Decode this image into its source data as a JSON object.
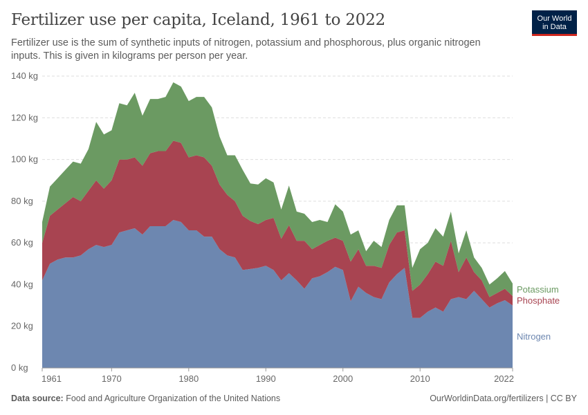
{
  "header": {
    "title": "Fertilizer use per capita, Iceland, 1961 to 2022",
    "subtitle": "Fertilizer use is the sum of synthetic inputs of nitrogen, potassium and phosphorous, plus organic nitrogen inputs. This is given in kilograms per person per year."
  },
  "logo": {
    "line1": "Our World",
    "line2": "in Data"
  },
  "footer": {
    "source_label": "Data source:",
    "source_text": "Food and Agriculture Organization of the United Nations",
    "link": "OurWorldinData.org/fertilizers | CC BY"
  },
  "colors": {
    "Nitrogen": "#6d87b0",
    "Phosphate": "#a84451",
    "Potassium": "#6b9a62",
    "grid": "#dddddd",
    "axis": "#999999"
  },
  "chart_data": {
    "type": "area",
    "stacked": true,
    "title": "Fertilizer use per capita, Iceland, 1961 to 2022",
    "ylim": [
      0,
      140
    ],
    "xlim": [
      1961,
      2022
    ],
    "y_ticks": [
      0,
      20,
      40,
      60,
      80,
      100,
      120,
      140
    ],
    "y_tick_labels": [
      "0 kg",
      "20 kg",
      "40 kg",
      "60 kg",
      "80 kg",
      "100 kg",
      "120 kg",
      "140 kg"
    ],
    "x_ticks": [
      1961,
      1970,
      1980,
      1990,
      2000,
      2010,
      2022
    ],
    "x_tick_labels": [
      "1961",
      "1970",
      "1980",
      "1990",
      "2000",
      "2010",
      "2022"
    ],
    "grid": "horizontal dashed",
    "legend_placement": "right (inline labels)",
    "x": [
      1961,
      1962,
      1963,
      1964,
      1965,
      1966,
      1967,
      1968,
      1969,
      1970,
      1971,
      1972,
      1973,
      1974,
      1975,
      1976,
      1977,
      1978,
      1979,
      1980,
      1981,
      1982,
      1983,
      1984,
      1985,
      1986,
      1987,
      1988,
      1989,
      1990,
      1991,
      1992,
      1993,
      1994,
      1995,
      1996,
      1997,
      1998,
      1999,
      2000,
      2001,
      2002,
      2003,
      2004,
      2005,
      2006,
      2007,
      2008,
      2009,
      2010,
      2011,
      2012,
      2013,
      2014,
      2015,
      2016,
      2017,
      2018,
      2019,
      2020,
      2021,
      2022
    ],
    "series": [
      {
        "name": "Nitrogen",
        "values": [
          42,
          50,
          52,
          53,
          53,
          54,
          57,
          59,
          58,
          59,
          65,
          66,
          67,
          64,
          68,
          68,
          68,
          71,
          70,
          66,
          66,
          63,
          63,
          57,
          54,
          53,
          47,
          47.5,
          48,
          49,
          47,
          42,
          45.5,
          42,
          38,
          43,
          44,
          46,
          48.5,
          47,
          32,
          39,
          36,
          34,
          33,
          41,
          45,
          48,
          24,
          24,
          27,
          29,
          27,
          33,
          34,
          33,
          37,
          33,
          29,
          31,
          32.5,
          30
        ]
      },
      {
        "name": "Phosphate",
        "values": [
          18,
          23,
          24,
          26,
          29,
          26,
          28,
          31,
          28,
          31,
          35,
          34,
          34,
          33,
          35,
          36,
          36,
          38,
          38,
          35,
          36,
          38,
          34,
          31,
          29,
          27,
          26,
          23,
          21,
          22,
          25,
          20,
          23,
          19,
          23,
          14,
          15,
          15,
          14,
          14,
          19,
          18,
          13,
          15,
          15,
          18,
          20,
          18,
          13,
          16,
          18,
          22,
          22,
          28,
          12,
          20,
          9,
          9,
          5,
          5,
          5.5,
          4.5
        ]
      },
      {
        "name": "Potassium",
        "values": [
          10,
          14,
          15,
          16,
          17,
          18,
          20,
          28,
          26,
          24,
          27,
          26,
          31,
          24,
          26,
          25,
          26,
          28,
          27,
          27,
          28,
          29,
          28,
          23,
          19,
          22,
          22,
          18,
          19,
          20,
          17,
          14,
          19,
          14,
          13,
          13,
          12,
          9,
          16,
          14,
          13,
          9,
          7,
          12,
          10,
          12,
          13,
          12,
          11,
          17,
          15,
          16,
          14,
          14,
          9,
          13,
          7,
          6,
          6,
          7,
          8.5,
          6
        ]
      }
    ]
  }
}
